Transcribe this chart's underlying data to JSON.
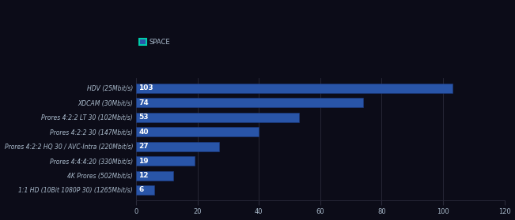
{
  "categories": [
    "1:1 HD (10Bit 1080P 30) (1265Mbit/s)",
    "4K Prores (502Mbit/s)",
    "Prores 4:4:4:20 (330Mbit/s)",
    "Prores 4:2:2 HQ 30 / AVC-Intra (220Mbit/s)",
    "Prores 4:2:2 30 (147Mbit/s)",
    "Prores 4:2:2 LT 30 (102Mbit/s)",
    "XDCAM (30Mbit/s)",
    "HDV (25Mbit/s)"
  ],
  "values": [
    6,
    12,
    19,
    27,
    40,
    53,
    74,
    103
  ],
  "bar_color": "#2955a8",
  "bar_edge_color": "#1a3a80",
  "label_color": "#ffffff",
  "background_color": "#0c0c18",
  "text_color": "#aabbcc",
  "grid_color": "#2a2a3a",
  "legend_label": "SPACE",
  "legend_box_color": "#2955a8",
  "legend_box_edge": "#00ccaa",
  "xlim": [
    0,
    120
  ],
  "xticks": [
    0,
    20,
    40,
    60,
    80,
    100,
    120
  ],
  "bar_height": 0.65,
  "label_fontsize": 5.5,
  "tick_fontsize": 6.0,
  "value_fontsize": 6.5
}
